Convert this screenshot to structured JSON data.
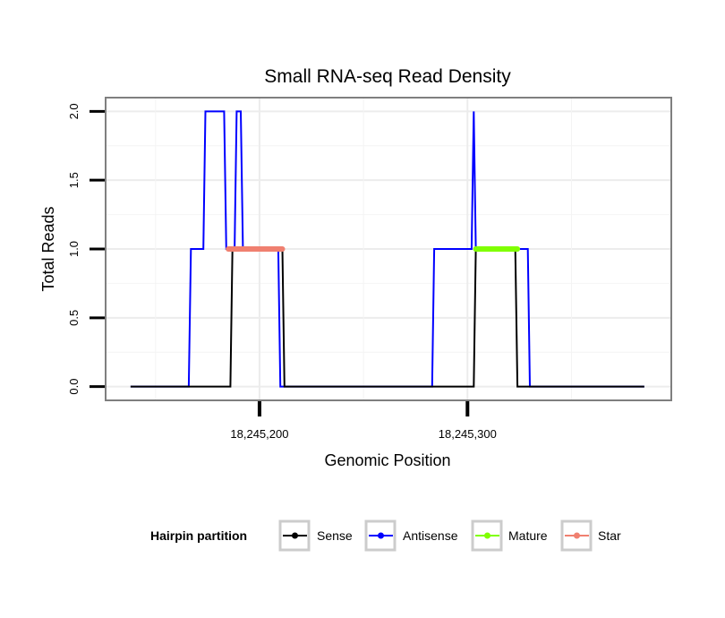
{
  "chart_data": {
    "type": "line",
    "title": "Small RNA-seq Read Density",
    "xlabel": "Genomic Position",
    "ylabel": "Total Reads",
    "xlim": [
      18245126,
      18245398
    ],
    "ylim": [
      -0.1,
      2.1
    ],
    "grid": true,
    "x_ticks": [
      {
        "value": 18245200,
        "label": "18,245,200"
      },
      {
        "value": 18245300,
        "label": "18,245,300"
      }
    ],
    "y_ticks": [
      {
        "value": 0,
        "label": "0.0"
      },
      {
        "value": 0.5,
        "label": "0.5"
      },
      {
        "value": 1,
        "label": "1.0"
      },
      {
        "value": 1.5,
        "label": "1.5"
      },
      {
        "value": 2,
        "label": "2.0"
      }
    ],
    "series": [
      {
        "name": "Antisense",
        "color": "#0000ff",
        "points": [
          [
            18245138,
            0
          ],
          [
            18245166,
            0
          ],
          [
            18245167,
            1
          ],
          [
            18245173,
            1
          ],
          [
            18245174,
            2
          ],
          [
            18245183,
            2
          ],
          [
            18245184,
            1
          ],
          [
            18245188,
            1
          ],
          [
            18245189,
            2
          ],
          [
            18245191,
            2
          ],
          [
            18245192,
            1
          ],
          [
            18245196,
            1
          ],
          [
            18245209,
            1
          ],
          [
            18245210,
            0
          ],
          [
            18245283,
            0
          ],
          [
            18245284,
            1
          ],
          [
            18245302,
            1
          ],
          [
            18245303,
            2
          ],
          [
            18245304,
            1
          ],
          [
            18245324,
            1
          ],
          [
            18245329,
            1
          ],
          [
            18245330,
            0
          ],
          [
            18245385,
            0
          ]
        ]
      },
      {
        "name": "Sense",
        "color": "#000000",
        "points": [
          [
            18245138,
            0
          ],
          [
            18245186,
            0
          ],
          [
            18245187,
            1
          ],
          [
            18245211,
            1
          ],
          [
            18245212,
            0
          ],
          [
            18245303,
            0
          ],
          [
            18245304,
            1
          ],
          [
            18245323,
            1
          ],
          [
            18245324,
            0
          ],
          [
            18245385,
            0
          ]
        ]
      },
      {
        "name": "Star",
        "color": "#f08070",
        "points": [
          [
            18245185,
            1
          ],
          [
            18245211,
            1
          ]
        ]
      },
      {
        "name": "Mature",
        "color": "#80ff00",
        "points": [
          [
            18245304,
            1
          ],
          [
            18245324,
            1
          ]
        ]
      }
    ],
    "legend": {
      "title": "Hairpin partition",
      "position": "bottom",
      "entries": [
        {
          "label": "Sense",
          "color": "#000000"
        },
        {
          "label": "Antisense",
          "color": "#0000ff"
        },
        {
          "label": "Mature",
          "color": "#80ff00"
        },
        {
          "label": "Star",
          "color": "#f08070"
        }
      ]
    }
  }
}
